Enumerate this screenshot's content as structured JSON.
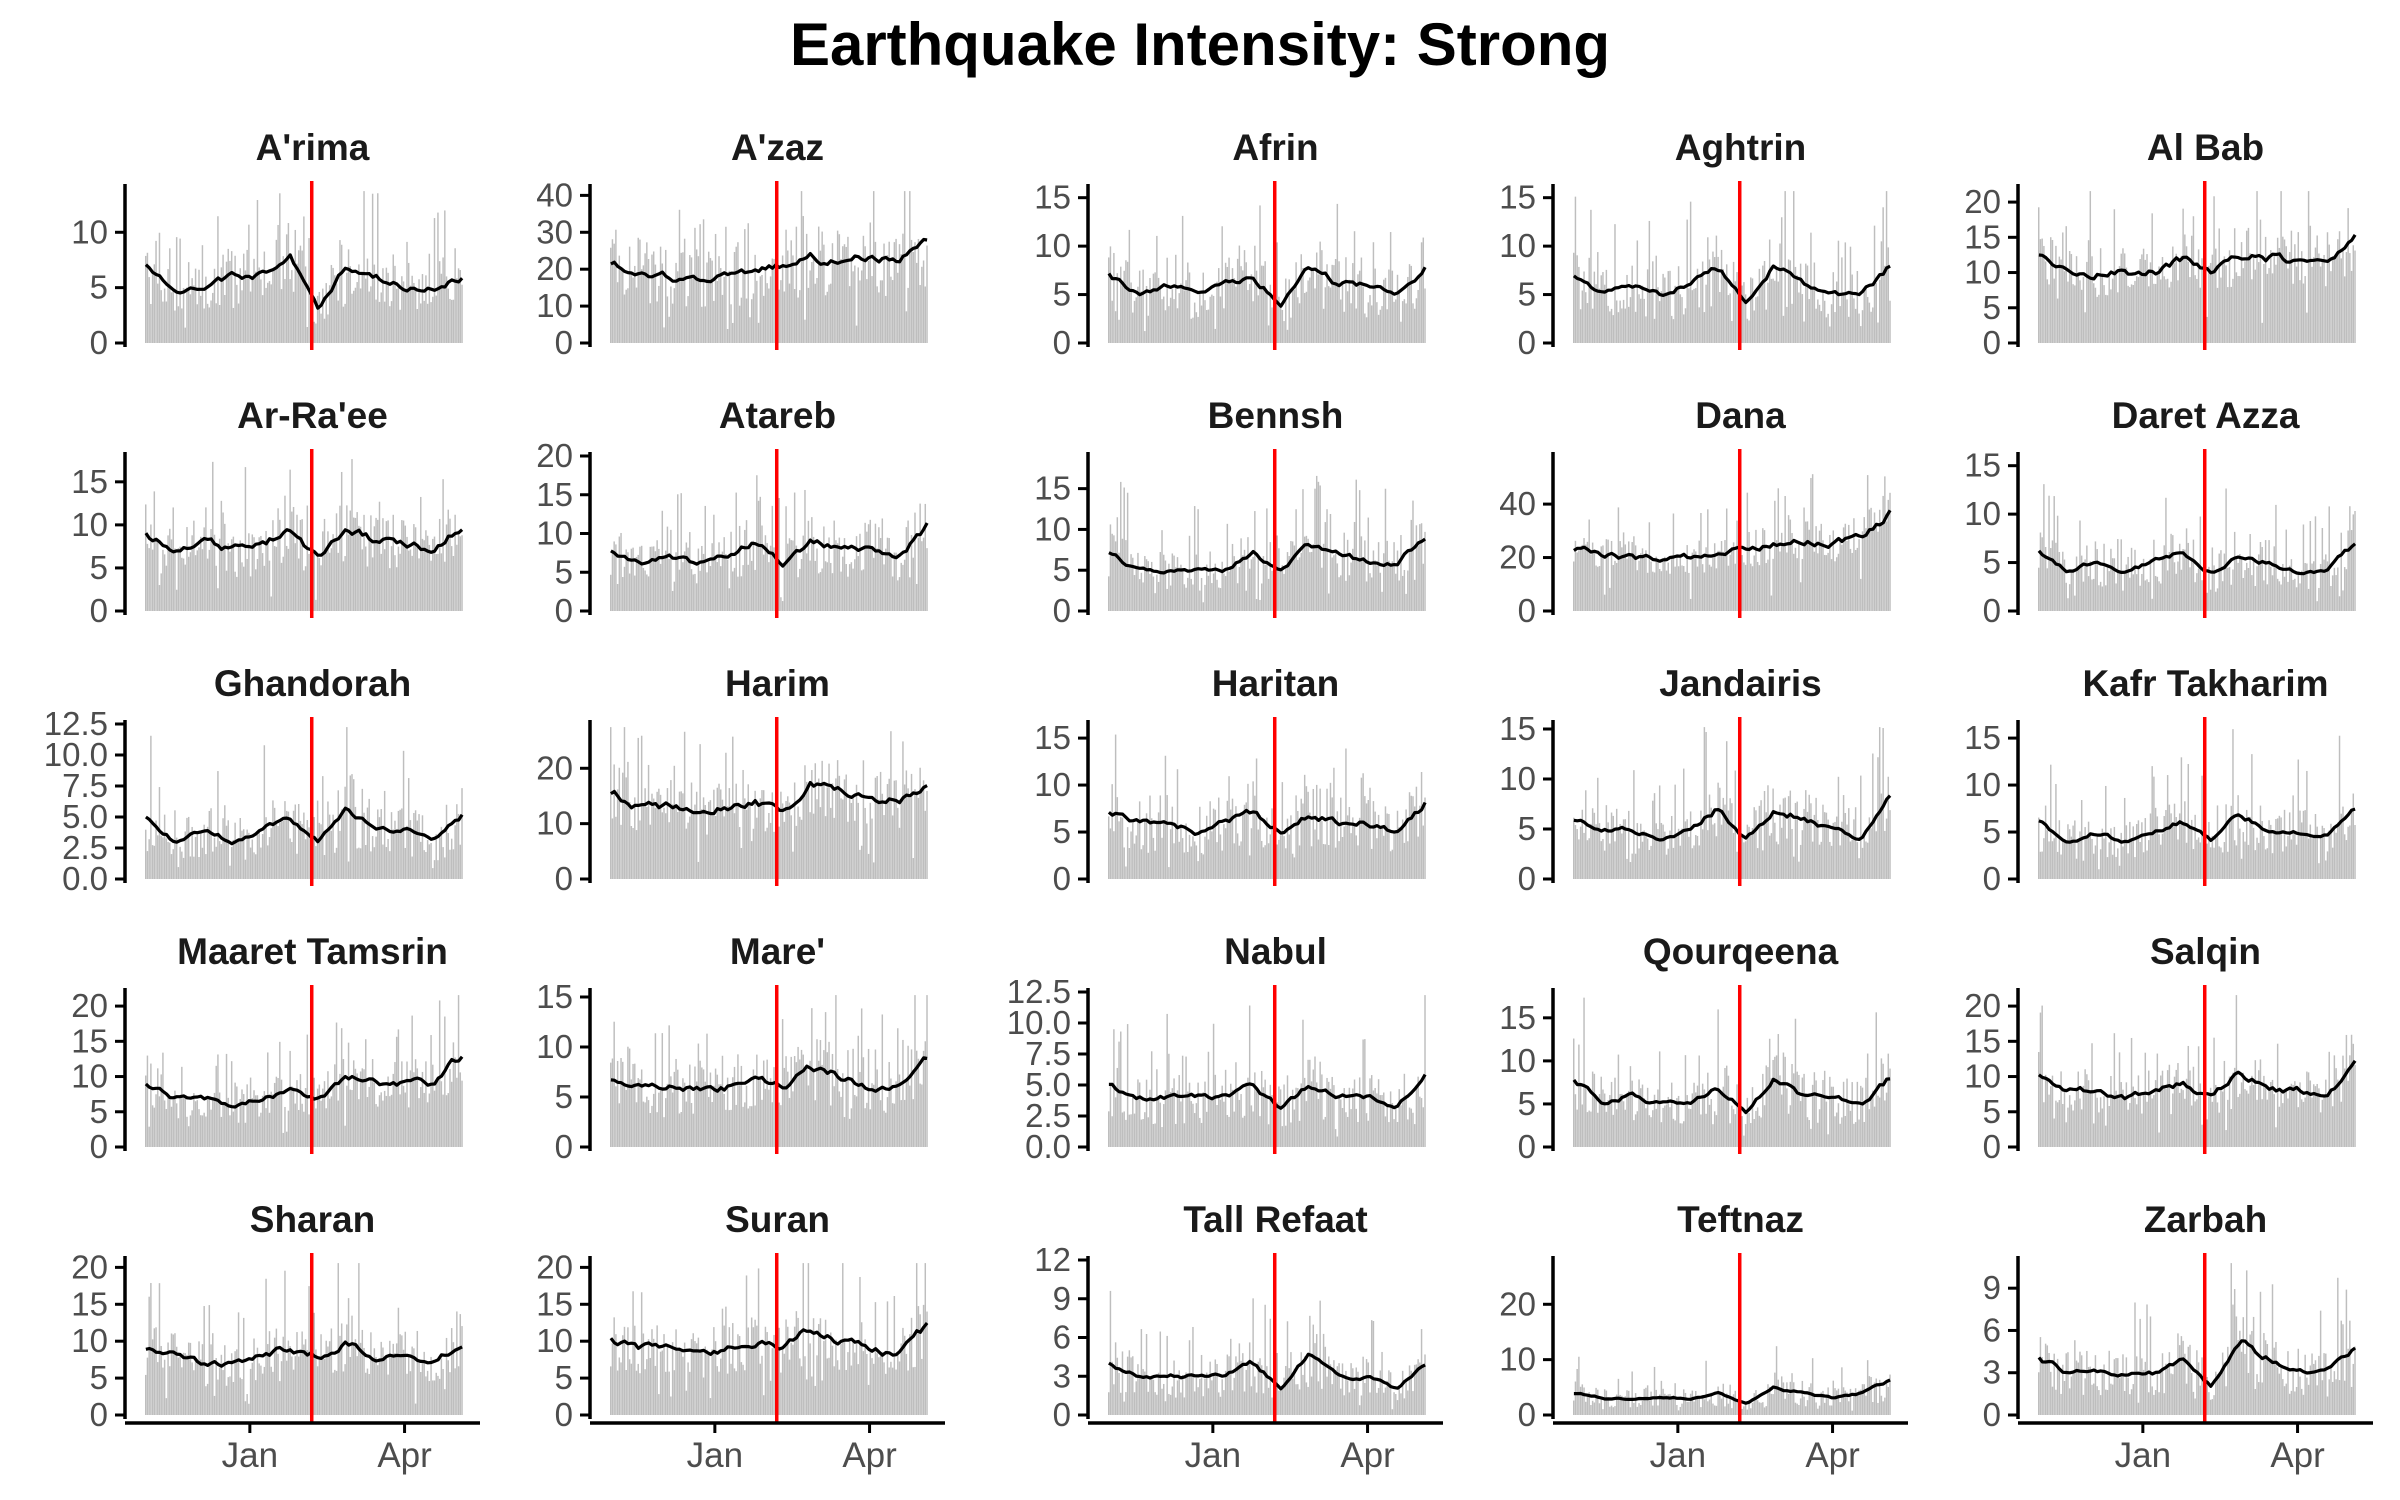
{
  "title": "Earthquake Intensity: Strong",
  "colors": {
    "bars": "#bebebe",
    "line": "#000000",
    "event": "#ff0000",
    "axis": "#000000"
  },
  "chart_data": {
    "type": "bar",
    "title": "Earthquake Intensity: Strong",
    "xlabel": "",
    "ylabel": "",
    "grid": false,
    "legend": "none",
    "x_range": [
      "2022-11-01",
      "2023-05-05"
    ],
    "x_ticks": [
      "Jan",
      "Apr"
    ],
    "x_tick_dates": [
      "2023-01-01",
      "2023-04-01"
    ],
    "event_date": "2023-02-06",
    "facets": [
      {
        "name": "A'rima",
        "ylim": [
          0,
          14
        ],
        "yticks": [
          "0",
          "5",
          "10"
        ],
        "mean": 5.5,
        "jump": 0.5,
        "spike": 0.7,
        "trend": [
          7,
          5,
          5,
          6,
          6,
          8,
          3,
          7,
          6,
          5,
          5,
          6
        ]
      },
      {
        "name": "A'zaz",
        "ylim": [
          0,
          42
        ],
        "yticks": [
          "0",
          "10",
          "20",
          "30",
          "40"
        ],
        "mean": 20,
        "jump": 0.45,
        "spike": 0.55,
        "trend": [
          22,
          20,
          18,
          17,
          18,
          20,
          21,
          24,
          22,
          23,
          22,
          28
        ]
      },
      {
        "name": "Afrin",
        "ylim": [
          0,
          16
        ],
        "yticks": [
          "0",
          "5",
          "10",
          "15"
        ],
        "mean": 6,
        "jump": 0.5,
        "spike": 0.8,
        "trend": [
          7,
          5,
          6,
          5,
          6,
          7,
          4,
          8,
          6,
          6,
          5,
          8
        ]
      },
      {
        "name": "Aghtrin",
        "ylim": [
          0,
          16
        ],
        "yticks": [
          "0",
          "5",
          "10",
          "15"
        ],
        "mean": 6,
        "jump": 0.5,
        "spike": 0.8,
        "trend": [
          7,
          5,
          6,
          5,
          6,
          8,
          4,
          8,
          6,
          5,
          5,
          8
        ]
      },
      {
        "name": "Al Bab",
        "ylim": [
          0,
          22
        ],
        "yticks": [
          "0",
          "5",
          "10",
          "15",
          "20"
        ],
        "mean": 11,
        "jump": 0.35,
        "spike": 0.55,
        "trend": [
          12,
          11,
          10,
          10,
          10,
          12,
          10,
          13,
          12,
          12,
          12,
          15
        ]
      },
      {
        "name": "Ar-Ra'ee",
        "ylim": [
          0,
          18
        ],
        "yticks": [
          "0",
          "5",
          "10",
          "15"
        ],
        "mean": 8,
        "jump": 0.4,
        "spike": 0.6,
        "trend": [
          9,
          7,
          8,
          7,
          8,
          9,
          6,
          10,
          8,
          8,
          7,
          10
        ]
      },
      {
        "name": "Atareb",
        "ylim": [
          0,
          20
        ],
        "yticks": [
          "0",
          "5",
          "10",
          "15",
          "20"
        ],
        "mean": 7,
        "jump": 0.45,
        "spike": 0.7,
        "trend": [
          8,
          6,
          7,
          6,
          7,
          9,
          6,
          9,
          8,
          8,
          7,
          11
        ]
      },
      {
        "name": "Bennsh",
        "ylim": [
          0,
          19
        ],
        "yticks": [
          "0",
          "5",
          "10",
          "15"
        ],
        "mean": 6,
        "jump": 0.5,
        "spike": 0.8,
        "trend": [
          7,
          5,
          5,
          5,
          5,
          7,
          5,
          8,
          7,
          6,
          6,
          9
        ]
      },
      {
        "name": "Dana",
        "ylim": [
          0,
          58
        ],
        "yticks": [
          "0",
          "20",
          "40"
        ],
        "mean": 22,
        "jump": 0.3,
        "spike": 0.4,
        "trend": [
          23,
          21,
          20,
          19,
          20,
          21,
          23,
          26,
          27,
          26,
          27,
          36
        ]
      },
      {
        "name": "Daret Azza",
        "ylim": [
          0,
          16
        ],
        "yticks": [
          "0",
          "5",
          "10",
          "15"
        ],
        "mean": 5,
        "jump": 0.5,
        "spike": 0.8,
        "trend": [
          6,
          4,
          5,
          4,
          5,
          6,
          4,
          6,
          5,
          4,
          4,
          7
        ]
      },
      {
        "name": "Ghandorah",
        "ylim": [
          0,
          12.5
        ],
        "yticks": [
          "0.0",
          "2.5",
          "5.0",
          "7.5",
          "10.0",
          "12.5"
        ],
        "mean": 4,
        "jump": 0.55,
        "spike": 0.9,
        "trend": [
          5,
          3,
          4,
          3,
          4,
          5,
          3,
          6,
          4,
          4,
          3,
          5
        ]
      },
      {
        "name": "Harim",
        "ylim": [
          0,
          28
        ],
        "yticks": [
          "0",
          "10",
          "20"
        ],
        "mean": 13,
        "jump": 0.35,
        "spike": 0.55,
        "trend": [
          16,
          13,
          13,
          12,
          13,
          14,
          12,
          17,
          16,
          15,
          14,
          17
        ]
      },
      {
        "name": "Haritan",
        "ylim": [
          0,
          16.5
        ],
        "yticks": [
          "0",
          "5",
          "10",
          "15"
        ],
        "mean": 6,
        "jump": 0.5,
        "spike": 0.8,
        "trend": [
          7,
          6,
          6,
          5,
          6,
          7,
          5,
          7,
          6,
          6,
          5,
          8
        ]
      },
      {
        "name": "Jandairis",
        "ylim": [
          0,
          15.5
        ],
        "yticks": [
          "0",
          "5",
          "10",
          "15"
        ],
        "mean": 5,
        "jump": 0.5,
        "spike": 0.8,
        "trend": [
          6,
          5,
          5,
          4,
          5,
          7,
          4,
          7,
          6,
          5,
          4,
          8
        ]
      },
      {
        "name": "Kafr Takharim",
        "ylim": [
          0,
          16.5
        ],
        "yticks": [
          "0",
          "5",
          "10",
          "15"
        ],
        "mean": 5,
        "jump": 0.5,
        "spike": 0.8,
        "trend": [
          6,
          4,
          5,
          4,
          5,
          6,
          4,
          7,
          5,
          5,
          5,
          8
        ]
      },
      {
        "name": "Maaret Tamsrin",
        "ylim": [
          0,
          22
        ],
        "yticks": [
          "0",
          "5",
          "10",
          "15",
          "20"
        ],
        "mean": 8,
        "jump": 0.4,
        "spike": 0.6,
        "trend": [
          9,
          7,
          7,
          6,
          7,
          8,
          7,
          10,
          9,
          9,
          9,
          13
        ]
      },
      {
        "name": "Mare'",
        "ylim": [
          0,
          15.5
        ],
        "yticks": [
          "0",
          "5",
          "10",
          "15"
        ],
        "mean": 6,
        "jump": 0.45,
        "spike": 0.7,
        "trend": [
          7,
          6,
          6,
          6,
          6,
          7,
          6,
          8,
          7,
          6,
          6,
          9
        ]
      },
      {
        "name": "Nabul",
        "ylim": [
          0,
          12.5
        ],
        "yticks": [
          "0.0",
          "2.5",
          "5.0",
          "7.5",
          "10.0",
          "12.5"
        ],
        "mean": 4,
        "jump": 0.55,
        "spike": 0.9,
        "trend": [
          5,
          4,
          4,
          4,
          4,
          5,
          3,
          5,
          4,
          4,
          3,
          6
        ]
      },
      {
        "name": "Qourqeena",
        "ylim": [
          0,
          18
        ],
        "yticks": [
          "0",
          "5",
          "10",
          "15"
        ],
        "mean": 6,
        "jump": 0.5,
        "spike": 0.8,
        "trend": [
          8,
          5,
          6,
          5,
          5,
          7,
          4,
          8,
          6,
          6,
          5,
          8
        ]
      },
      {
        "name": "Salqin",
        "ylim": [
          0,
          22
        ],
        "yticks": [
          "0",
          "5",
          "10",
          "15",
          "20"
        ],
        "mean": 8,
        "jump": 0.4,
        "spike": 0.6,
        "trend": [
          10,
          8,
          8,
          7,
          8,
          9,
          7,
          11,
          8,
          8,
          7,
          12
        ]
      },
      {
        "name": "Sharan",
        "ylim": [
          0,
          21
        ],
        "yticks": [
          "0",
          "5",
          "10",
          "15",
          "20"
        ],
        "mean": 8,
        "jump": 0.4,
        "spike": 0.6,
        "trend": [
          9,
          8,
          7,
          7,
          8,
          9,
          8,
          10,
          8,
          8,
          7,
          10
        ]
      },
      {
        "name": "Suran",
        "ylim": [
          0,
          21
        ],
        "yticks": [
          "0",
          "5",
          "10",
          "15",
          "20"
        ],
        "mean": 9,
        "jump": 0.4,
        "spike": 0.6,
        "trend": [
          10,
          9,
          9,
          8,
          9,
          10,
          9,
          12,
          10,
          9,
          8,
          12
        ]
      },
      {
        "name": "Tall Refaat",
        "ylim": [
          0,
          12
        ],
        "yticks": [
          "0",
          "3",
          "6",
          "9",
          "12"
        ],
        "mean": 3.5,
        "jump": 0.55,
        "spike": 0.9,
        "trend": [
          4,
          3,
          3,
          3,
          3,
          4,
          2,
          5,
          3,
          3,
          2,
          4
        ]
      },
      {
        "name": "Teftnaz",
        "ylim": [
          0,
          28
        ],
        "yticks": [
          "0",
          "10",
          "20"
        ],
        "mean": 4,
        "jump": 0.6,
        "spike": 1.0,
        "trend": [
          4,
          3,
          3,
          3,
          3,
          4,
          2,
          5,
          4,
          3,
          4,
          6
        ]
      },
      {
        "name": "Zarbah",
        "ylim": [
          0,
          11
        ],
        "yticks": [
          "0",
          "3",
          "6",
          "9"
        ],
        "mean": 3.5,
        "jump": 0.55,
        "spike": 0.9,
        "trend": [
          4,
          3,
          3,
          3,
          3,
          4,
          2,
          5,
          4,
          3,
          3,
          5
        ]
      }
    ]
  }
}
